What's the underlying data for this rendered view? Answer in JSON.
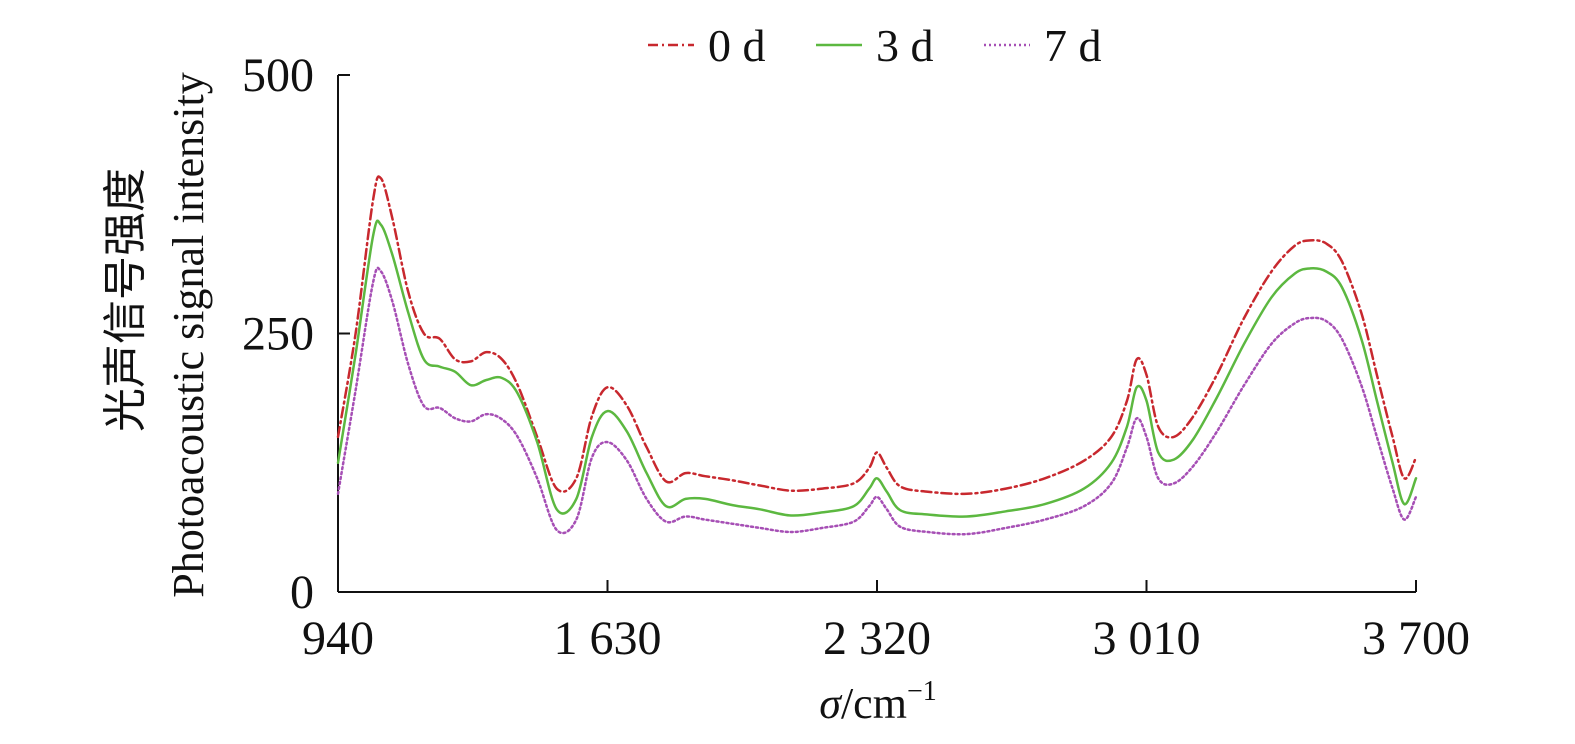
{
  "chart_data": {
    "type": "line",
    "title": "",
    "xlabel": {
      "symbol": "σ",
      "unit": "/cm",
      "exponent": "−1"
    },
    "ylabel": {
      "zh": "光声信号强度",
      "en": "Photoacoustic signal intensity"
    },
    "xlim": [
      940,
      3700
    ],
    "ylim": [
      0,
      500
    ],
    "x_ticks": [
      940,
      1630,
      2320,
      3010,
      3700
    ],
    "x_tick_labels": [
      "940",
      "1 630",
      "2 320",
      "3 010",
      "3 700"
    ],
    "y_ticks": [
      0,
      250,
      500
    ],
    "y_tick_labels": [
      "0",
      "250",
      "500"
    ],
    "grid": false,
    "legend_position": "top",
    "colors": {
      "0 d": "#c8282e",
      "3 d": "#5cb840",
      "7 d": "#a64fb5"
    },
    "series": [
      {
        "name": "0 d",
        "line_style": "dash-dot",
        "x": [
          940,
          985,
          1030,
          1050,
          1080,
          1120,
          1160,
          1200,
          1240,
          1280,
          1320,
          1360,
          1400,
          1450,
          1500,
          1550,
          1590,
          1630,
          1680,
          1730,
          1780,
          1830,
          1880,
          1950,
          2020,
          2100,
          2180,
          2260,
          2300,
          2320,
          2345,
          2380,
          2450,
          2550,
          2650,
          2750,
          2850,
          2920,
          2960,
          2985,
          3010,
          3040,
          3080,
          3130,
          3190,
          3260,
          3330,
          3390,
          3430,
          3470,
          3510,
          3560,
          3600,
          3640,
          3670,
          3700
        ],
        "y": [
          150,
          250,
          380,
          400,
          360,
          290,
          250,
          245,
          225,
          223,
          232,
          225,
          200,
          150,
          100,
          110,
          170,
          198,
          180,
          140,
          107,
          115,
          112,
          108,
          103,
          98,
          100,
          105,
          120,
          135,
          120,
          102,
          97,
          95,
          100,
          110,
          127,
          150,
          185,
          225,
          210,
          160,
          150,
          170,
          210,
          265,
          310,
          335,
          340,
          337,
          320,
          270,
          210,
          150,
          110,
          130
        ]
      },
      {
        "name": "3 d",
        "line_style": "solid",
        "x": [
          940,
          985,
          1030,
          1050,
          1080,
          1120,
          1160,
          1200,
          1240,
          1280,
          1320,
          1360,
          1400,
          1450,
          1500,
          1550,
          1590,
          1630,
          1680,
          1730,
          1780,
          1830,
          1880,
          1950,
          2020,
          2100,
          2180,
          2260,
          2300,
          2320,
          2345,
          2380,
          2450,
          2550,
          2650,
          2750,
          2850,
          2920,
          2960,
          2985,
          3010,
          3040,
          3080,
          3130,
          3190,
          3260,
          3330,
          3390,
          3430,
          3470,
          3510,
          3560,
          3600,
          3640,
          3670,
          3700
        ],
        "y": [
          125,
          230,
          345,
          355,
          325,
          270,
          225,
          218,
          213,
          200,
          205,
          207,
          192,
          145,
          80,
          90,
          150,
          175,
          155,
          115,
          83,
          90,
          90,
          84,
          80,
          74,
          77,
          83,
          100,
          110,
          97,
          79,
          75,
          73,
          78,
          85,
          100,
          125,
          160,
          198,
          185,
          135,
          128,
          148,
          188,
          240,
          285,
          308,
          313,
          310,
          295,
          245,
          185,
          125,
          85,
          110
        ]
      },
      {
        "name": "7 d",
        "line_style": "dotted",
        "x": [
          940,
          985,
          1030,
          1050,
          1080,
          1120,
          1160,
          1200,
          1240,
          1280,
          1320,
          1360,
          1400,
          1450,
          1500,
          1550,
          1590,
          1630,
          1680,
          1730,
          1780,
          1830,
          1880,
          1950,
          2020,
          2100,
          2180,
          2260,
          2300,
          2320,
          2345,
          2380,
          2450,
          2550,
          2650,
          2750,
          2850,
          2920,
          2960,
          2985,
          3010,
          3040,
          3080,
          3130,
          3190,
          3260,
          3330,
          3390,
          3430,
          3470,
          3510,
          3560,
          3600,
          3640,
          3670,
          3700
        ],
        "y": [
          95,
          195,
          300,
          310,
          280,
          220,
          180,
          178,
          168,
          165,
          172,
          167,
          150,
          110,
          60,
          70,
          130,
          145,
          127,
          90,
          68,
          73,
          70,
          66,
          62,
          58,
          62,
          68,
          83,
          92,
          80,
          63,
          58,
          56,
          62,
          70,
          83,
          105,
          140,
          168,
          150,
          110,
          105,
          122,
          155,
          200,
          240,
          260,
          265,
          262,
          245,
          200,
          150,
          100,
          70,
          92
        ]
      }
    ]
  }
}
